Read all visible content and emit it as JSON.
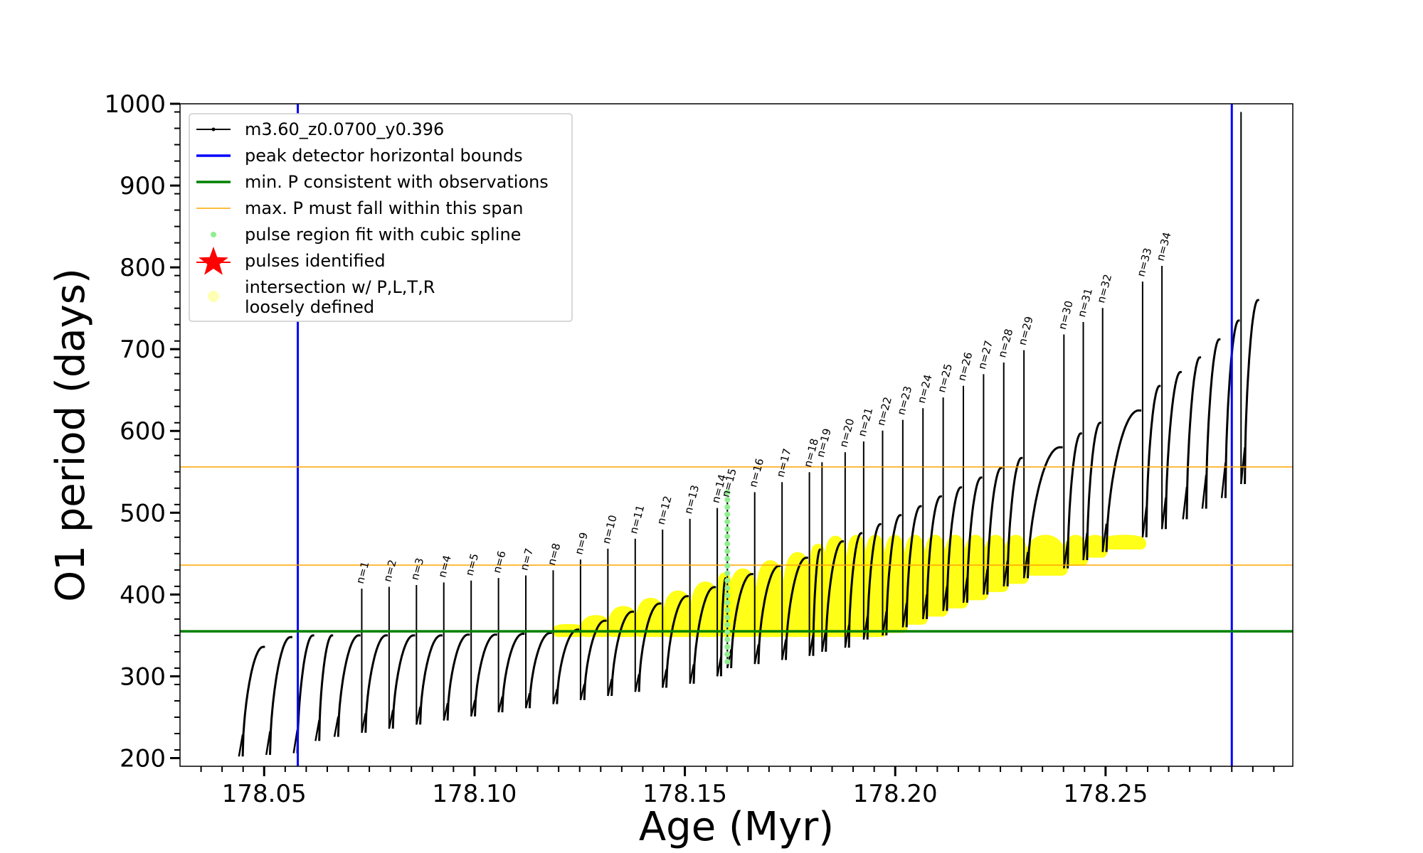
{
  "chart_data": {
    "type": "scatter",
    "title": "",
    "xlabel": "Age (Myr)",
    "ylabel": "O1 period (days)",
    "xlim": [
      178.03,
      178.2945
    ],
    "ylim": [
      190,
      1000
    ],
    "xticks": [
      178.05,
      178.1,
      178.15,
      178.2,
      178.25
    ],
    "xtick_labels": [
      "178.05",
      "178.10",
      "178.15",
      "178.20",
      "178.25"
    ],
    "yticks": [
      200,
      300,
      400,
      500,
      600,
      700,
      800,
      900,
      1000
    ],
    "ytick_labels": [
      "200",
      "300",
      "400",
      "500",
      "600",
      "700",
      "800",
      "900",
      "1000"
    ],
    "grid": false,
    "legend_position": "upper-left",
    "colors": {
      "track": "#000000",
      "vertical_bounds": "#0000ff",
      "min_period": "#008000",
      "max_span": "#ffa500",
      "spline_region": "#90ee90",
      "pulse_star": "#ff0000",
      "intersection": "#ffff00"
    },
    "legend": [
      {
        "label": "m3.60_z0.0700_y0.396",
        "marker": "line-dot",
        "color": "#000000"
      },
      {
        "label": "peak detector horizontal bounds",
        "marker": "line",
        "color": "#0000ff"
      },
      {
        "label": "min. P consistent with observations",
        "marker": "line",
        "color": "#008000"
      },
      {
        "label": "max. P must fall within this span",
        "marker": "thin-line",
        "color": "#ffa500"
      },
      {
        "label": "pulse region fit with cubic spline",
        "marker": "dot",
        "color": "#90ee90"
      },
      {
        "label": "pulses identified",
        "marker": "star",
        "color": "#ff0000"
      },
      {
        "label": "intersection w/ P,L,T,R",
        "label2": "loosely defined",
        "marker": "circle",
        "color": "#ffffb3"
      }
    ],
    "vertical_lines": [
      178.058,
      178.28
    ],
    "min_period_line": 355,
    "max_period_span": [
      436,
      556
    ],
    "pulses": [
      {
        "n": 1,
        "age": 178.0732,
        "peak": 350,
        "min": 231
      },
      {
        "n": 2,
        "age": 178.0797,
        "peak": 350,
        "min": 236
      },
      {
        "n": 3,
        "age": 178.0862,
        "peak": 350,
        "min": 241
      },
      {
        "n": 4,
        "age": 178.0927,
        "peak": 351,
        "min": 246
      },
      {
        "n": 5,
        "age": 178.0992,
        "peak": 351,
        "min": 251
      },
      {
        "n": 6,
        "age": 178.1057,
        "peak": 352,
        "min": 256
      },
      {
        "n": 7,
        "age": 178.1122,
        "peak": 353,
        "min": 261
      },
      {
        "n": 8,
        "age": 178.1187,
        "peak": 357,
        "min": 266
      },
      {
        "n": 9,
        "age": 178.1252,
        "peak": 368,
        "min": 271
      },
      {
        "n": 10,
        "age": 178.1317,
        "peak": 379,
        "min": 276
      },
      {
        "n": 11,
        "age": 178.1382,
        "peak": 389,
        "min": 281
      },
      {
        "n": 12,
        "age": 178.1447,
        "peak": 398,
        "min": 286
      },
      {
        "n": 13,
        "age": 178.1512,
        "peak": 409,
        "min": 291
      },
      {
        "n": 14,
        "age": 178.1577,
        "peak": 420,
        "min": 300
      },
      {
        "n": 15,
        "age": 178.1601,
        "peak": 425,
        "min": 310
      },
      {
        "n": 16,
        "age": 178.1666,
        "peak": 435,
        "min": 315
      },
      {
        "n": 17,
        "age": 178.1731,
        "peak": 445,
        "min": 320
      },
      {
        "n": 18,
        "age": 178.1796,
        "peak": 455,
        "min": 325
      },
      {
        "n": 19,
        "age": 178.1826,
        "peak": 465,
        "min": 330
      },
      {
        "n": 20,
        "age": 178.1881,
        "peak": 475,
        "min": 335
      },
      {
        "n": 21,
        "age": 178.1925,
        "peak": 486,
        "min": 345
      },
      {
        "n": 22,
        "age": 178.197,
        "peak": 497,
        "min": 350
      },
      {
        "n": 23,
        "age": 178.2018,
        "peak": 508,
        "min": 360
      },
      {
        "n": 24,
        "age": 178.2066,
        "peak": 520,
        "min": 370
      },
      {
        "n": 25,
        "age": 178.2114,
        "peak": 531,
        "min": 380
      },
      {
        "n": 26,
        "age": 178.2162,
        "peak": 543,
        "min": 390
      },
      {
        "n": 27,
        "age": 178.221,
        "peak": 555,
        "min": 400
      },
      {
        "n": 28,
        "age": 178.2258,
        "peak": 567,
        "min": 410
      },
      {
        "n": 29,
        "age": 178.2306,
        "peak": 580,
        "min": 420
      },
      {
        "n": 30,
        "age": 178.2401,
        "peak": 597,
        "min": 432
      },
      {
        "n": 31,
        "age": 178.2447,
        "peak": 610,
        "min": 442
      },
      {
        "n": 32,
        "age": 178.2493,
        "peak": 625,
        "min": 452
      },
      {
        "n": 33,
        "age": 178.2588,
        "peak": 655,
        "min": 470
      },
      {
        "n": 34,
        "age": 178.2634,
        "peak": 672,
        "min": 480
      }
    ]
  }
}
